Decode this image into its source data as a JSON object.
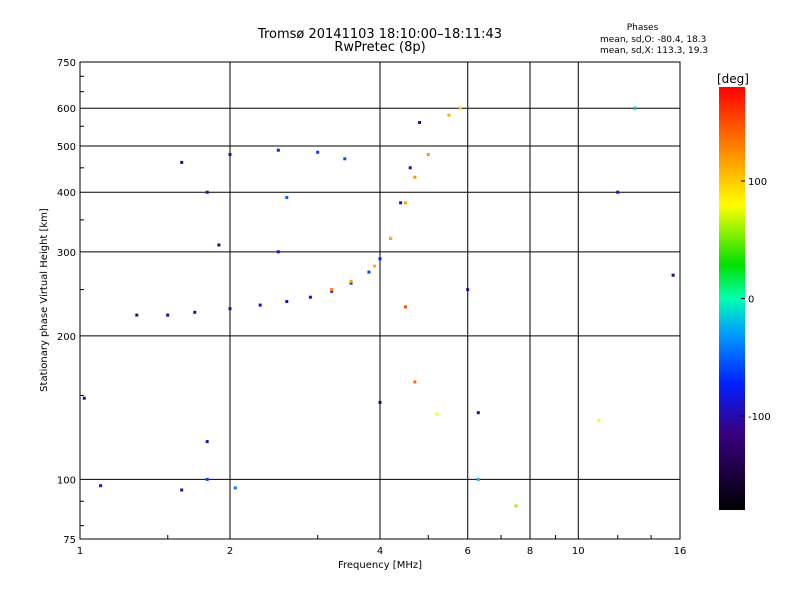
{
  "chart_data": {
    "type": "scatter",
    "title": "Tromsø 20141103 18:10:00–18:11:43",
    "subtitle": "RwPretec (8p)",
    "xlabel": "Frequency [MHz]",
    "ylabel": "Stationary phase Virtual Height [km]",
    "x_scale": "log",
    "y_scale": "log",
    "xlim": [
      1,
      16
    ],
    "ylim": [
      75,
      750
    ],
    "x_ticks": [
      1,
      2,
      4,
      6,
      8,
      10,
      16
    ],
    "y_ticks": [
      75,
      100,
      200,
      300,
      400,
      500,
      600,
      750
    ],
    "grid": true,
    "stats": {
      "title": "Phases",
      "line_o": "mean, sd,O: -80.4, 18.3",
      "line_x": "mean, sd,X: 113.3, 19.3"
    },
    "colorbar": {
      "label": "[deg]",
      "range": [
        -180,
        180
      ],
      "ticks": [
        100,
        0,
        -100
      ]
    },
    "series": [
      {
        "values": [
          {
            "f": 1.3,
            "h": 221,
            "p": -110
          },
          {
            "f": 1.5,
            "h": 221,
            "p": -108
          },
          {
            "f": 1.7,
            "h": 224,
            "p": -105
          },
          {
            "f": 2.0,
            "h": 228,
            "p": -100
          },
          {
            "f": 2.3,
            "h": 232,
            "p": -96
          },
          {
            "f": 2.6,
            "h": 236,
            "p": -93
          },
          {
            "f": 2.9,
            "h": 241,
            "p": -88
          },
          {
            "f": 3.2,
            "h": 248,
            "p": -80
          },
          {
            "f": 3.5,
            "h": 258,
            "p": -70
          },
          {
            "f": 3.8,
            "h": 272,
            "p": -60
          },
          {
            "f": 4.0,
            "h": 290,
            "p": -70
          },
          {
            "f": 4.2,
            "h": 320,
            "p": -80
          },
          {
            "f": 4.4,
            "h": 380,
            "p": -95
          },
          {
            "f": 4.6,
            "h": 450,
            "p": -100
          },
          {
            "f": 4.8,
            "h": 560,
            "p": -105
          },
          {
            "f": 1.6,
            "h": 462,
            "p": -110
          },
          {
            "f": 2.0,
            "h": 480,
            "p": -95
          },
          {
            "f": 2.5,
            "h": 490,
            "p": -70
          },
          {
            "f": 3.0,
            "h": 485,
            "p": -60
          },
          {
            "f": 3.4,
            "h": 470,
            "p": -55
          },
          {
            "f": 1.8,
            "h": 400,
            "p": -100
          },
          {
            "f": 1.9,
            "h": 310,
            "p": -120
          },
          {
            "f": 2.5,
            "h": 300,
            "p": -85
          },
          {
            "f": 2.6,
            "h": 390,
            "p": -50
          }
        ]
      },
      {
        "values": [
          {
            "f": 3.2,
            "h": 250,
            "p": 130
          },
          {
            "f": 3.5,
            "h": 260,
            "p": 120
          },
          {
            "f": 3.9,
            "h": 280,
            "p": 110
          },
          {
            "f": 4.2,
            "h": 320,
            "p": 105
          },
          {
            "f": 4.5,
            "h": 380,
            "p": 115
          },
          {
            "f": 4.7,
            "h": 430,
            "p": 125
          },
          {
            "f": 5.0,
            "h": 480,
            "p": 120
          },
          {
            "f": 5.5,
            "h": 580,
            "p": 110
          },
          {
            "f": 5.8,
            "h": 600,
            "p": 95
          }
        ]
      },
      {
        "values": [
          {
            "f": 1.02,
            "h": 148,
            "p": -110
          },
          {
            "f": 1.1,
            "h": 97,
            "p": -80
          },
          {
            "f": 1.6,
            "h": 95,
            "p": -100
          },
          {
            "f": 1.8,
            "h": 100,
            "p": -60
          },
          {
            "f": 2.05,
            "h": 96,
            "p": -40
          },
          {
            "f": 1.8,
            "h": 120,
            "p": -100
          },
          {
            "f": 4.0,
            "h": 145,
            "p": -120
          },
          {
            "f": 4.5,
            "h": 230,
            "p": 150
          },
          {
            "f": 4.7,
            "h": 160,
            "p": 140
          },
          {
            "f": 5.2,
            "h": 137,
            "p": 80
          },
          {
            "f": 6.0,
            "h": 250,
            "p": -110
          },
          {
            "f": 6.3,
            "h": 138,
            "p": -100
          },
          {
            "f": 6.3,
            "h": 100,
            "p": -20
          },
          {
            "f": 7.5,
            "h": 88,
            "p": 60
          },
          {
            "f": 11.0,
            "h": 133,
            "p": 80
          },
          {
            "f": 12.0,
            "h": 400,
            "p": -90
          },
          {
            "f": 13.0,
            "h": 600,
            "p": -20
          },
          {
            "f": 15.5,
            "h": 268,
            "p": -120
          }
        ]
      }
    ]
  }
}
